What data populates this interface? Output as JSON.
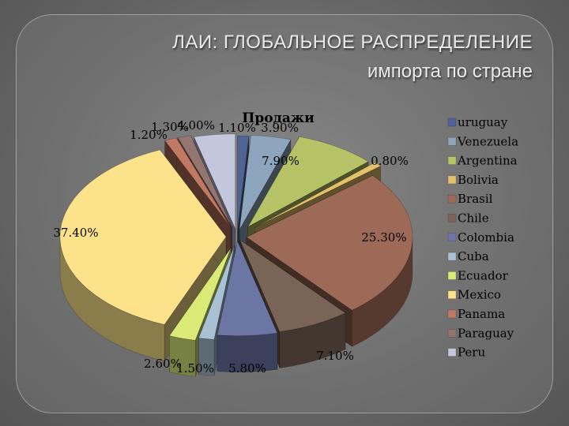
{
  "slide": {
    "title_line1": "ЛАИ: ГЛОБАЛЬНОЕ РАСПРЕДЕЛЕНИЕ",
    "title_line2": "импорта по стране"
  },
  "chart_data": {
    "type": "pie",
    "title": "Продажи",
    "legend_position": "right",
    "unit": "%",
    "slices": [
      {
        "name": "uruguay",
        "value": 1.1,
        "label": "1.10%",
        "color": "#4f6395"
      },
      {
        "name": "Venezuela",
        "value": 3.9,
        "label": "3.90%",
        "color": "#8ea6bd"
      },
      {
        "name": "Argentina",
        "value": 7.9,
        "label": "7.90%",
        "color": "#b5c265"
      },
      {
        "name": "Bolivia",
        "value": 0.8,
        "label": "0.80%",
        "color": "#e3c16a"
      },
      {
        "name": "Brasil",
        "value": 25.3,
        "label": "25.30%",
        "color": "#9c6a57"
      },
      {
        "name": "Chile",
        "value": 7.1,
        "label": "7.10%",
        "color": "#7a6457"
      },
      {
        "name": "Colombia",
        "value": 5.8,
        "label": "5.80%",
        "color": "#6b76a5"
      },
      {
        "name": "Cuba",
        "value": 1.5,
        "label": "1.50%",
        "color": "#a9c2d3"
      },
      {
        "name": "Ecuador",
        "value": 2.6,
        "label": "2.60%",
        "color": "#d9ea76"
      },
      {
        "name": "Mexico",
        "value": 37.4,
        "label": "37.40%",
        "color": "#fce28b"
      },
      {
        "name": "Panama",
        "value": 1.2,
        "label": "1.20%",
        "color": "#c07a63"
      },
      {
        "name": "Paraguay",
        "value": 1.3,
        "label": "1.30%",
        "color": "#947570"
      },
      {
        "name": "Peru",
        "value": 4.0,
        "label": "4.00%",
        "color": "#c3c6dd"
      }
    ]
  }
}
